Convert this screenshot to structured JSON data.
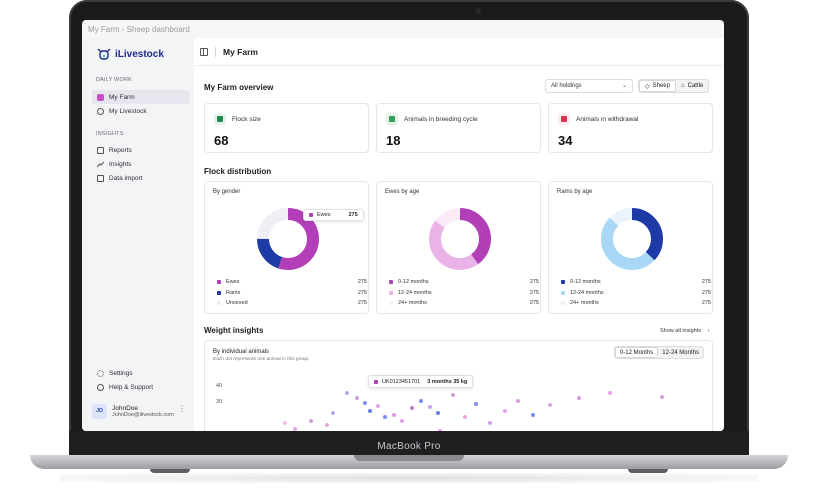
{
  "window_title": "My Farm - Sheep dashboard",
  "device_label": "MacBook Pro",
  "brand": {
    "name": "iLivestock"
  },
  "sidebar": {
    "section_daily": "DAILY WORK",
    "daily_items": [
      {
        "label": "My Farm",
        "icon": "home-icon",
        "active": true
      },
      {
        "label": "My Livestock",
        "icon": "livestock-icon",
        "active": false
      }
    ],
    "section_insights": "INSIGHTS",
    "insight_items": [
      {
        "label": "Reports",
        "icon": "document-icon"
      },
      {
        "label": "Insights",
        "icon": "trend-icon"
      },
      {
        "label": "Data import",
        "icon": "import-icon"
      }
    ],
    "bottom_items": [
      {
        "label": "Settings",
        "icon": "gear-icon"
      },
      {
        "label": "Help & Support",
        "icon": "help-icon"
      }
    ],
    "user": {
      "initials": "JD",
      "name": "JohnDoe",
      "email": "JohnDoe@ilivestock.com"
    }
  },
  "header": {
    "breadcrumb": "My Farm"
  },
  "overview": {
    "title": "My Farm overview",
    "holdings_select": "All holdings",
    "species_tabs": [
      {
        "label": "Sheep",
        "active": true
      },
      {
        "label": "Cattle",
        "active": false
      }
    ]
  },
  "stats": [
    {
      "label": "Flock size",
      "value": "68",
      "color": "#1e8a4c",
      "bg": "#e5f4ea"
    },
    {
      "label": "Animals in breeding cycle",
      "value": "18",
      "color": "#2e9e5b",
      "bg": "#e5f4ea"
    },
    {
      "label": "Animals in withdrawal",
      "value": "34",
      "color": "#d9334f",
      "bg": "#fdebee"
    }
  ],
  "distribution": {
    "title": "Flock distribution",
    "charts": [
      {
        "title": "By gender",
        "tooltip": {
          "label": "Ewes",
          "value": "275"
        },
        "legend": [
          {
            "label": "Ewes",
            "value": "275",
            "color": "#b23fb7"
          },
          {
            "label": "Rams",
            "value": "275",
            "color": "#1d3aa6"
          },
          {
            "label": "Unsexed",
            "value": "275",
            "color": "#eef0f6"
          }
        ]
      },
      {
        "title": "Ewes by age",
        "legend": [
          {
            "label": "0-12 months",
            "value": "275",
            "color": "#b23fb7"
          },
          {
            "label": "12-24 months",
            "value": "275",
            "color": "#e9b3e8"
          },
          {
            "label": "24+ months",
            "value": "275",
            "color": "#fbeaf8"
          }
        ]
      },
      {
        "title": "Rams by age",
        "legend": [
          {
            "label": "0-12 months",
            "value": "275",
            "color": "#1d3aa6"
          },
          {
            "label": "12-24 months",
            "value": "275",
            "color": "#a9d8f6"
          },
          {
            "label": "24+ months",
            "value": "275",
            "color": "#e8f3fc"
          }
        ]
      }
    ]
  },
  "chart_data": [
    {
      "type": "pie",
      "title": "By gender",
      "categories": [
        "Ewes",
        "Rams",
        "Unsexed"
      ],
      "values": [
        275,
        275,
        275
      ],
      "display_shares": [
        0.55,
        0.2,
        0.25
      ]
    },
    {
      "type": "pie",
      "title": "Ewes by age",
      "categories": [
        "0-12 months",
        "12-24 months",
        "24+ months"
      ],
      "values": [
        275,
        275,
        275
      ],
      "display_shares": [
        0.4,
        0.45,
        0.15
      ]
    },
    {
      "type": "pie",
      "title": "Rams by age",
      "categories": [
        "0-12 months",
        "12-24 months",
        "24+ months"
      ],
      "values": [
        275,
        275,
        275
      ],
      "display_shares": [
        0.37,
        0.5,
        0.13
      ]
    }
  ],
  "weight": {
    "title": "Weight insights",
    "show_all": "Show all insights",
    "panel_title": "By individual animals",
    "panel_subtitle": "Each dot represents one animal in this group.",
    "tabs": [
      {
        "label": "0-12 Months",
        "active": true
      },
      {
        "label": "12-24 Months",
        "active": false
      }
    ],
    "y_ticks": [
      "40",
      "30"
    ],
    "tooltip": {
      "id": "UK0123451701",
      "value": "3 months 35 kg"
    }
  }
}
